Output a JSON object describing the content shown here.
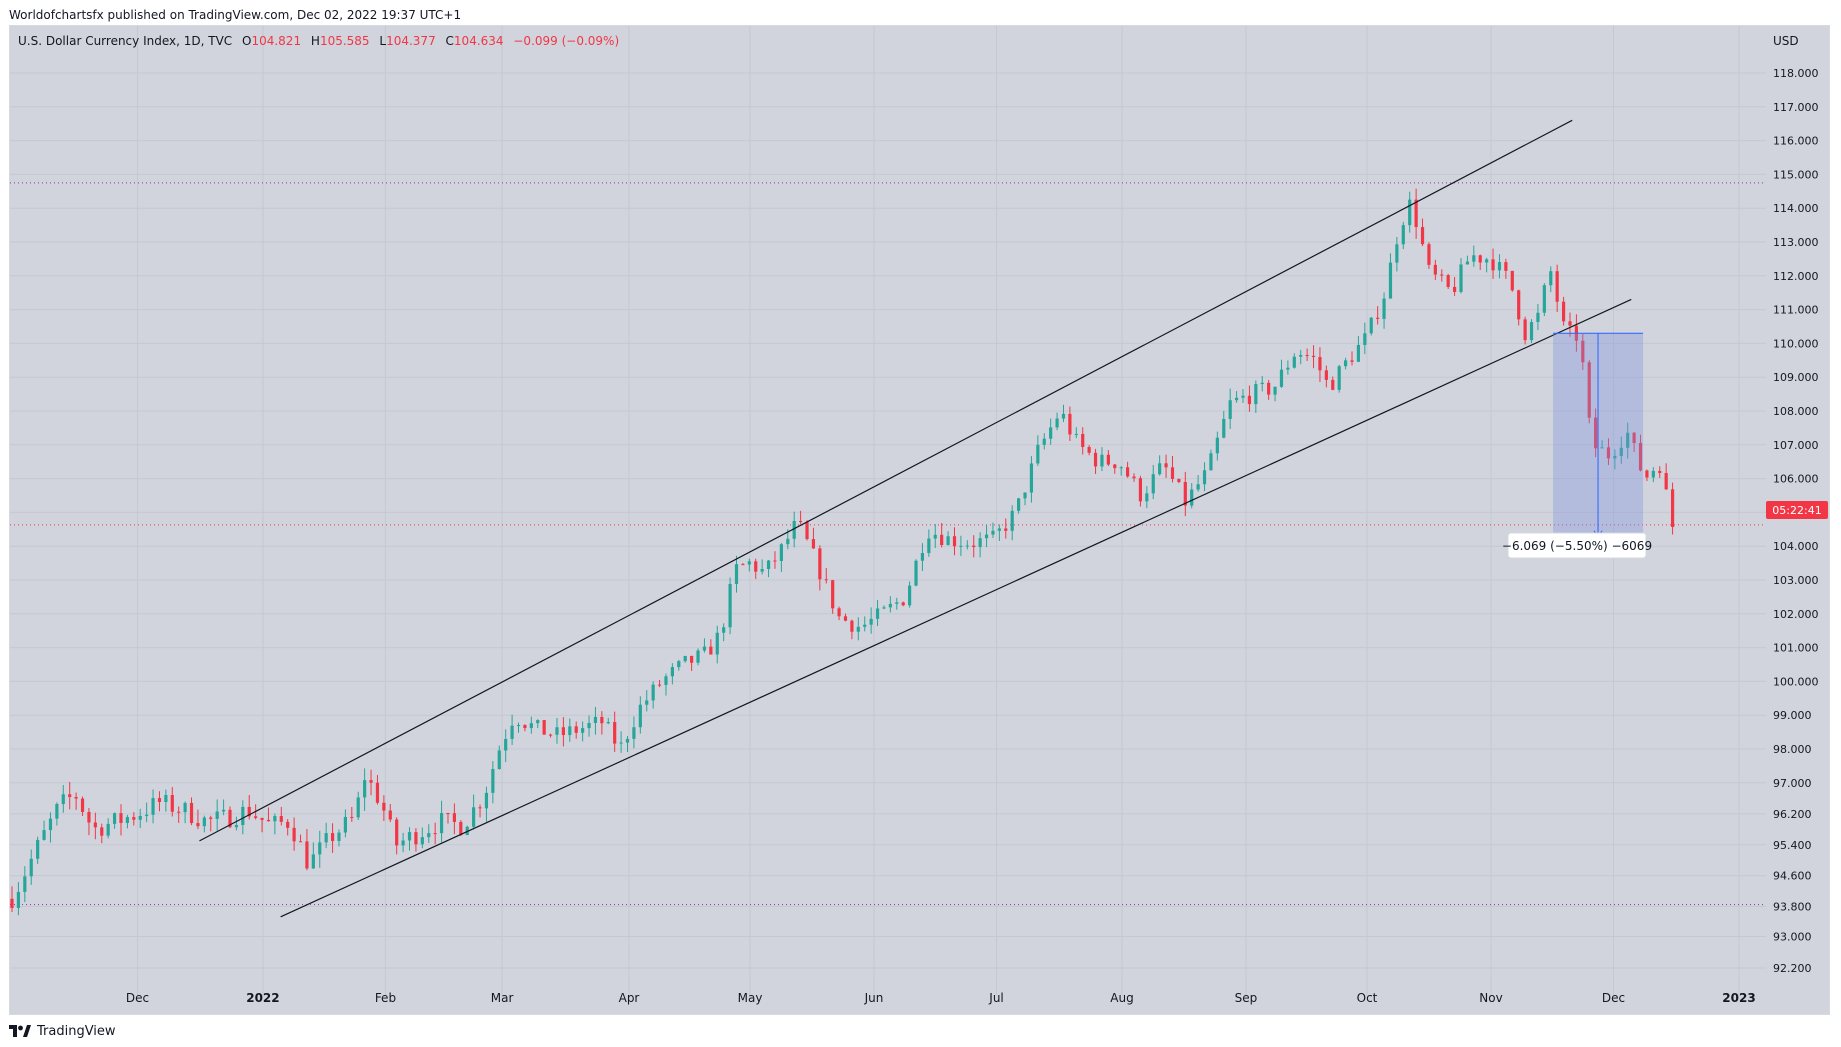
{
  "header": {
    "published_text": "Worldofchartsfx published on TradingView.com, Dec 02, 2022 19:37 UTC+1"
  },
  "legend": {
    "symbol": "U.S. Dollar Currency Index, 1D, TVC",
    "o_label": "O",
    "o_value": "104.821",
    "h_label": "H",
    "h_value": "105.585",
    "l_label": "L",
    "l_value": "104.377",
    "c_label": "C",
    "c_value": "104.634",
    "change": "−0.099 (−0.09%)"
  },
  "footer": {
    "brand": "TradingView"
  },
  "colors": {
    "up": "#26a69a",
    "down": "#f23645",
    "bg": "#d1d4dc",
    "grid": "#c4c8d1",
    "measure_fill": "#7b8fe0",
    "measure_line": "#2962ff",
    "price_tag": "#f23645"
  },
  "chart_data": {
    "type": "candlestick",
    "title": "U.S. Dollar Currency Index, 1D, TVC",
    "currency": "USD",
    "x_ticks": [
      "Dec",
      "2022",
      "Feb",
      "Mar",
      "Apr",
      "May",
      "Jun",
      "Jul",
      "Aug",
      "Sep",
      "Oct",
      "Nov",
      "Dec",
      "2023"
    ],
    "y_ticks": [
      "118.000",
      "117.000",
      "116.000",
      "115.000",
      "114.000",
      "113.000",
      "112.000",
      "111.000",
      "110.000",
      "109.000",
      "108.000",
      "107.000",
      "106.000",
      "105.000",
      "104.000",
      "103.000",
      "102.000",
      "101.000",
      "100.000",
      "99.000",
      "98.000",
      "97.000",
      "96.200",
      "95.400",
      "94.600",
      "93.800",
      "93.000",
      "92.200"
    ],
    "current_price_tag": "05:22:41",
    "measure_label": "−6.069 (−5.50%) −6069",
    "horizontal_levels": [
      114.75,
      104.63,
      93.85
    ],
    "trend_lines": [
      {
        "name": "upper-channel-line",
        "from": {
          "t": 2021.957,
          "v": 95.5
        },
        "to": {
          "t": 2022.887,
          "v": 116.6
        }
      },
      {
        "name": "lower-channel-line",
        "from": {
          "t": 2022.012,
          "v": 93.5
        },
        "to": {
          "t": 2022.927,
          "v": 111.3
        }
      }
    ],
    "measure_box": {
      "t_start": 2022.874,
      "t_end": 2022.935,
      "v_top": 110.3,
      "v_bottom": 104.25
    },
    "anchors": [
      {
        "t": 2021.83,
        "v": 94.0
      },
      {
        "t": 2021.848,
        "v": 95.4
      },
      {
        "t": 2021.862,
        "v": 96.4
      },
      {
        "t": 2021.873,
        "v": 96.7
      },
      {
        "t": 2021.885,
        "v": 95.8
      },
      {
        "t": 2021.9,
        "v": 96.0
      },
      {
        "t": 2021.915,
        "v": 96.2
      },
      {
        "t": 2021.93,
        "v": 96.5
      },
      {
        "t": 2021.946,
        "v": 96.3
      },
      {
        "t": 2021.962,
        "v": 96.0
      },
      {
        "t": 2021.976,
        "v": 96.1
      },
      {
        "t": 2021.99,
        "v": 96.3
      },
      {
        "t": 2022.005,
        "v": 95.9
      },
      {
        "t": 2022.018,
        "v": 96.0
      },
      {
        "t": 2022.031,
        "v": 94.9
      },
      {
        "t": 2022.046,
        "v": 95.6
      },
      {
        "t": 2022.062,
        "v": 96.1
      },
      {
        "t": 2022.069,
        "v": 97.2
      },
      {
        "t": 2022.08,
        "v": 96.5
      },
      {
        "t": 2022.09,
        "v": 95.4
      },
      {
        "t": 2022.105,
        "v": 95.7
      },
      {
        "t": 2022.12,
        "v": 96.0
      },
      {
        "t": 2022.135,
        "v": 95.9
      },
      {
        "t": 2022.15,
        "v": 96.7
      },
      {
        "t": 2022.16,
        "v": 98.0
      },
      {
        "t": 2022.17,
        "v": 99.0
      },
      {
        "t": 2022.185,
        "v": 98.6
      },
      {
        "t": 2022.2,
        "v": 98.4
      },
      {
        "t": 2022.215,
        "v": 98.6
      },
      {
        "t": 2022.23,
        "v": 98.8
      },
      {
        "t": 2022.242,
        "v": 98.0
      },
      {
        "t": 2022.255,
        "v": 99.2
      },
      {
        "t": 2022.27,
        "v": 100.0
      },
      {
        "t": 2022.285,
        "v": 100.5
      },
      {
        "t": 2022.3,
        "v": 100.8
      },
      {
        "t": 2022.31,
        "v": 101.4
      },
      {
        "t": 2022.32,
        "v": 103.3
      },
      {
        "t": 2022.33,
        "v": 103.5
      },
      {
        "t": 2022.34,
        "v": 103.2
      },
      {
        "t": 2022.35,
        "v": 103.8
      },
      {
        "t": 2022.362,
        "v": 104.7
      },
      {
        "t": 2022.375,
        "v": 103.5
      },
      {
        "t": 2022.39,
        "v": 101.9
      },
      {
        "t": 2022.405,
        "v": 101.6
      },
      {
        "t": 2022.42,
        "v": 102.0
      },
      {
        "t": 2022.435,
        "v": 102.5
      },
      {
        "t": 2022.45,
        "v": 104.5
      },
      {
        "t": 2022.465,
        "v": 104.2
      },
      {
        "t": 2022.48,
        "v": 104.1
      },
      {
        "t": 2022.495,
        "v": 104.2
      },
      {
        "t": 2022.51,
        "v": 105.0
      },
      {
        "t": 2022.525,
        "v": 106.8
      },
      {
        "t": 2022.54,
        "v": 108.0
      },
      {
        "t": 2022.552,
        "v": 107.0
      },
      {
        "t": 2022.566,
        "v": 106.5
      },
      {
        "t": 2022.58,
        "v": 106.5
      },
      {
        "t": 2022.595,
        "v": 105.5
      },
      {
        "t": 2022.61,
        "v": 106.4
      },
      {
        "t": 2022.625,
        "v": 105.3
      },
      {
        "t": 2022.64,
        "v": 106.2
      },
      {
        "t": 2022.655,
        "v": 108.2
      },
      {
        "t": 2022.67,
        "v": 108.5
      },
      {
        "t": 2022.685,
        "v": 108.7
      },
      {
        "t": 2022.7,
        "v": 109.8
      },
      {
        "t": 2022.713,
        "v": 109.5
      },
      {
        "t": 2022.722,
        "v": 108.7
      },
      {
        "t": 2022.735,
        "v": 109.5
      },
      {
        "t": 2022.748,
        "v": 110.2
      },
      {
        "t": 2022.76,
        "v": 111.5
      },
      {
        "t": 2022.77,
        "v": 113.5
      },
      {
        "t": 2022.778,
        "v": 114.2
      },
      {
        "t": 2022.79,
        "v": 112.1
      },
      {
        "t": 2022.805,
        "v": 111.5
      },
      {
        "t": 2022.818,
        "v": 112.6
      },
      {
        "t": 2022.832,
        "v": 112.5
      },
      {
        "t": 2022.845,
        "v": 111.8
      },
      {
        "t": 2022.855,
        "v": 110.3
      },
      {
        "t": 2022.864,
        "v": 110.8
      },
      {
        "t": 2022.872,
        "v": 112.2
      },
      {
        "t": 2022.882,
        "v": 110.3
      },
      {
        "t": 2022.892,
        "v": 110.2
      },
      {
        "t": 2022.9,
        "v": 107.0
      },
      {
        "t": 2022.912,
        "v": 106.7
      },
      {
        "t": 2022.924,
        "v": 107.4
      },
      {
        "t": 2022.936,
        "v": 106.0
      },
      {
        "t": 2022.946,
        "v": 106.5
      },
      {
        "t": 2022.955,
        "v": 104.6
      }
    ]
  }
}
